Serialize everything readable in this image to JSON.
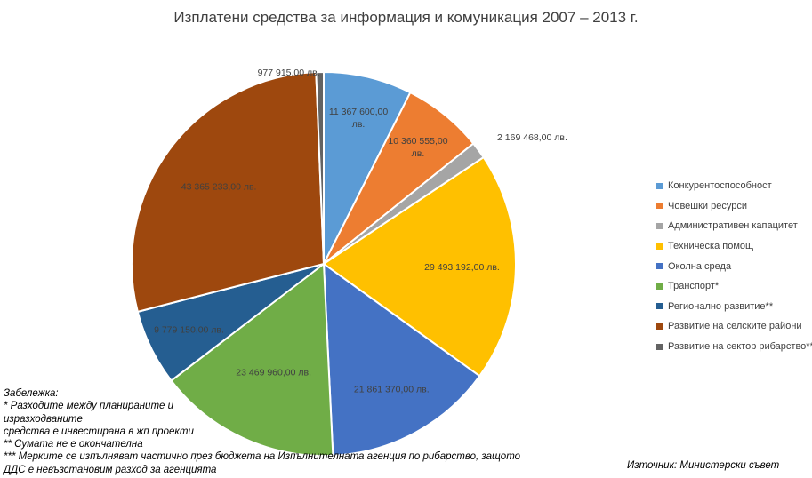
{
  "chart_data": {
    "type": "pie",
    "title": "Изплатени средства за информация и комуникация 2007 – 2013 г.",
    "slices": [
      {
        "name": "Конкурентоспособност",
        "value": 11367600.0,
        "label": "11 367 600,00 лв.",
        "color": "#5B9BD5"
      },
      {
        "name": "Човешки ресурси",
        "value": 10360555.0,
        "label": "10 360 555,00 лв.",
        "color": "#ED7D31"
      },
      {
        "name": "Административен капацитет",
        "value": 2169468.0,
        "label": "2 169 468,00 лв.",
        "color": "#A5A5A5"
      },
      {
        "name": "Техническа помощ",
        "value": 29493192.0,
        "label": "29 493 192,00 лв.",
        "color": "#FFC000"
      },
      {
        "name": "Околна среда",
        "value": 21861370.0,
        "label": "21 861 370,00 лв.",
        "color": "#4472C4"
      },
      {
        "name": "Транспорт*",
        "value": 23469960.0,
        "label": "23 469 960,00 лв.",
        "color": "#70AD47"
      },
      {
        "name": "Регионално развитие**",
        "value": 9779150.0,
        "label": "9 779 150,00 лв.",
        "color": "#255E91"
      },
      {
        "name": "Развитие на селските райони",
        "value": 43365233.0,
        "label": "43 365 233,00 лв.",
        "color": "#9E480E"
      },
      {
        "name": "Развитие на сектор рибарство**",
        "value": 977915.0,
        "label": "977 915,00 лв.",
        "color": "#636363"
      }
    ],
    "legend_position": "right"
  },
  "notes": {
    "heading": "Забележка:",
    "line1": "* Разходите между планираните и",
    "line2": "изразходваните",
    "line3": " средства е инвестирана в жп проекти",
    "line4": "** Сумата не е окончателна",
    "line5": "*** Мерките се изпълняват частично през бюджета на Изпълнителната агенция по рибарство, защото",
    "line6": "ДДС е невъзстановим разход за агенцията"
  },
  "source": "Източник: Министерски съвет"
}
